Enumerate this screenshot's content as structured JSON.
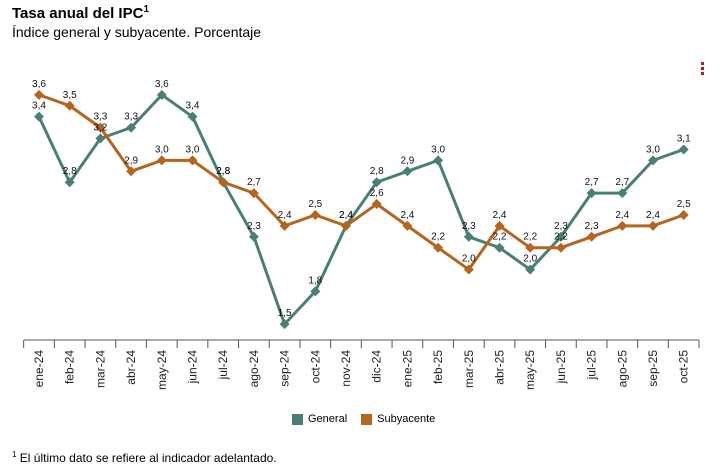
{
  "header": {
    "title": "Tasa anual del IPC",
    "title_sup": "1",
    "subtitle": "Índice general y subyacente. Porcentaje"
  },
  "menu_icon": "kebab-menu-icon",
  "footnote": {
    "sup": "1",
    "text": "El último dato se refiere al indicador adelantado."
  },
  "colors": {
    "general": "#4a7f76",
    "subyacente": "#b5651d",
    "axis": "#555555"
  },
  "chart_data": {
    "type": "line",
    "title": "Tasa anual del IPC",
    "subtitle": "Índice general y subyacente. Porcentaje",
    "xlabel": "",
    "ylabel": "",
    "ylim": [
      1.3,
      3.8
    ],
    "grid": false,
    "legend": "bottom-center",
    "categories": [
      "ene-24",
      "feb-24",
      "mar-24",
      "abr-24",
      "may-24",
      "jun-24",
      "jul-24",
      "ago-24",
      "sep-24",
      "oct-24",
      "nov-24",
      "dic-24",
      "ene-25",
      "feb-25",
      "mar-25",
      "abr-25",
      "may-25",
      "jun-25",
      "jul-25",
      "ago-25",
      "sep-25",
      "oct-25"
    ],
    "series": [
      {
        "name": "General",
        "values": [
          3.4,
          2.8,
          3.2,
          3.3,
          3.6,
          3.4,
          2.8,
          2.3,
          1.5,
          1.8,
          2.4,
          2.8,
          2.9,
          3.0,
          2.3,
          2.2,
          2.0,
          2.3,
          2.7,
          2.7,
          3.0,
          3.1
        ],
        "labels": [
          "3,4",
          "2,8",
          "3,2",
          "3,3",
          "3,6",
          "3,4",
          "2,8",
          "2,3",
          "1,5",
          "1,8",
          "2,4",
          "2,8",
          "2,9",
          "3,0",
          "2,3",
          "2,2",
          "2,0",
          "2,3",
          "2,7",
          "2,7",
          "3,0",
          "3,1"
        ]
      },
      {
        "name": "Subyacente",
        "values": [
          3.6,
          3.5,
          3.3,
          2.9,
          3.0,
          3.0,
          2.8,
          2.7,
          2.4,
          2.5,
          2.4,
          2.6,
          2.4,
          2.2,
          2.0,
          2.4,
          2.2,
          2.2,
          2.3,
          2.4,
          2.4,
          2.5
        ],
        "labels": [
          "3,6",
          "3,5",
          "3,3",
          "2,9",
          "3,0",
          "3,0",
          "2,8",
          "2,7",
          "2,4",
          "2,5",
          "2,4",
          "2,6",
          "2,4",
          "2,2",
          "2,0",
          "2,4",
          "2,2",
          "2,2",
          "2,3",
          "2,4",
          "2,4",
          "2,5"
        ]
      }
    ]
  }
}
